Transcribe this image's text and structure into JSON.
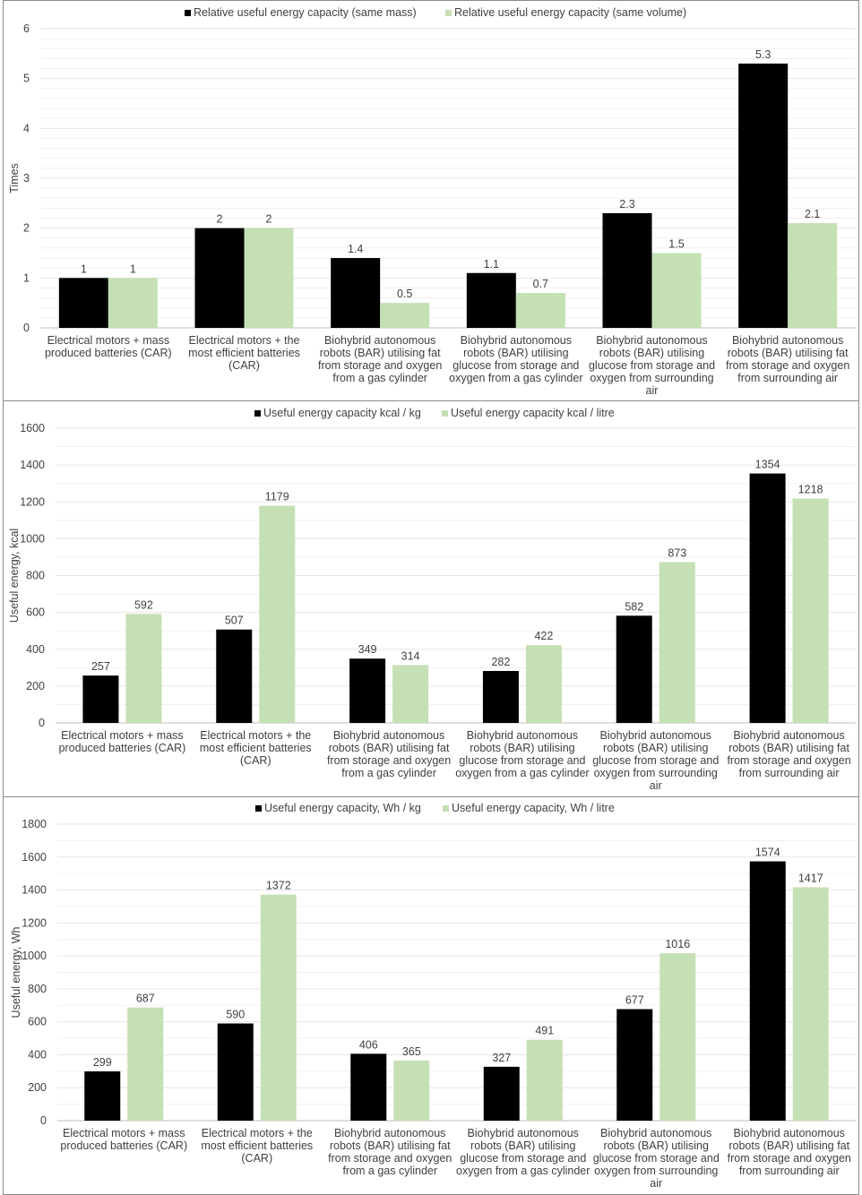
{
  "colors": {
    "mass": "#000000",
    "volume": "#c5e0b4",
    "grid": "#e6e6e6",
    "axis": "#bfbfbf"
  },
  "chart_data": [
    {
      "type": "bar",
      "title": "",
      "ylabel": "Times",
      "ylim": [
        0,
        6
      ],
      "yticks": [
        0,
        1,
        2,
        3,
        4,
        5,
        6
      ],
      "categories": [
        [
          "Electrical motors + mass",
          "produced batteries (CAR)"
        ],
        [
          "Electrical motors + the",
          "most efficient batteries",
          "(CAR)"
        ],
        [
          "Biohybrid autonomous",
          "robots (BAR) utilising fat",
          "from storage and oxygen",
          "from a gas cylinder"
        ],
        [
          "Biohybrid autonomous",
          "robots (BAR) utilising",
          "glucose from storage and",
          "oxygen from a gas cylinder"
        ],
        [
          "Biohybrid autonomous",
          "robots (BAR) utilising",
          "glucose from storage and",
          "oxygen from surrounding",
          "air"
        ],
        [
          "Biohybrid autonomous",
          "robots (BAR) utilising fat",
          "from storage and oxygen",
          "from surrounding air"
        ]
      ],
      "series": [
        {
          "name": "Relative useful energy capacity (same mass)",
          "values": [
            1,
            2,
            1.4,
            1.1,
            2.3,
            5.3
          ]
        },
        {
          "name": "Relative useful energy capacity (same volume)",
          "values": [
            1,
            2,
            0.5,
            0.7,
            1.5,
            2.1
          ]
        }
      ],
      "legend": "top",
      "grid": true
    },
    {
      "type": "bar",
      "title": "",
      "ylabel": "Useful energy, kcal",
      "ylim": [
        0,
        1600
      ],
      "yticks": [
        0,
        200,
        400,
        600,
        800,
        1000,
        1200,
        1400,
        1600
      ],
      "categories": [
        [
          "Electrical motors + mass",
          "produced batteries (CAR)"
        ],
        [
          "Electrical motors + the",
          "most efficient batteries",
          "(CAR)"
        ],
        [
          "Biohybrid autonomous",
          "robots (BAR) utilising fat",
          "from storage and oxygen",
          "from a gas cylinder"
        ],
        [
          "Biohybrid autonomous",
          "robots (BAR) utilising",
          "glucose from storage and",
          "oxygen from a gas cylinder"
        ],
        [
          "Biohybrid autonomous",
          "robots (BAR) utilising",
          "glucose from storage and",
          "oxygen from surrounding",
          "air"
        ],
        [
          "Biohybrid autonomous",
          "robots (BAR) utilising fat",
          "from storage and oxygen",
          "from surrounding air"
        ]
      ],
      "series": [
        {
          "name": "Useful energy capacity kcal / kg",
          "values": [
            257,
            507,
            349,
            282,
            582,
            1354
          ]
        },
        {
          "name": "Useful energy capacity kcal / litre",
          "values": [
            592,
            1179,
            314,
            422,
            873,
            1218
          ]
        }
      ],
      "legend": "top",
      "grid": true
    },
    {
      "type": "bar",
      "title": "",
      "ylabel": "Useful energy, Wh",
      "ylim": [
        0,
        1800
      ],
      "yticks": [
        0,
        200,
        400,
        600,
        800,
        1000,
        1200,
        1400,
        1600,
        1800
      ],
      "categories": [
        [
          "Electrical motors + mass",
          "produced batteries (CAR)"
        ],
        [
          "Electrical motors + the",
          "most efficient batteries",
          "(CAR)"
        ],
        [
          "Biohybrid autonomous",
          "robots (BAR) utilising fat",
          "from storage and oxygen",
          "from a gas cylinder"
        ],
        [
          "Biohybrid autonomous",
          "robots (BAR) utilising",
          "glucose from storage and",
          "oxygen from a gas cylinder"
        ],
        [
          "Biohybrid autonomous",
          "robots (BAR) utilising",
          "glucose from storage and",
          "oxygen from surrounding",
          "air"
        ],
        [
          "Biohybrid autonomous",
          "robots (BAR) utilising fat",
          "from storage and oxygen",
          "from surrounding air"
        ]
      ],
      "series": [
        {
          "name": "Useful energy capacity, Wh / kg",
          "values": [
            299,
            590,
            406,
            327,
            677,
            1574
          ]
        },
        {
          "name": "Useful energy capacity, Wh / litre",
          "values": [
            687,
            1372,
            365,
            491,
            1016,
            1417
          ]
        }
      ],
      "legend": "top",
      "grid": true
    }
  ]
}
